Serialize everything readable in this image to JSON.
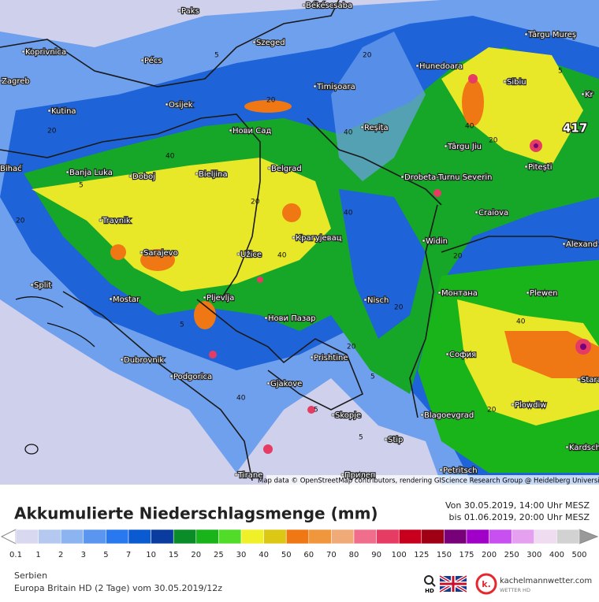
{
  "map": {
    "cities": [
      "Paks",
      "Békéscsaba",
      "Koprivnica",
      "Pécs",
      "Szeged",
      "Zagreb",
      "Kutina",
      "Osijek",
      "Timișoara",
      "Hunedoara",
      "Sibiu",
      "Târgu Mureș",
      "Нови Сад",
      "Reșița",
      "Târgu Jiu",
      "Pitești",
      "Banja Luka",
      "Doboj",
      "Bieljina",
      "Belgrad",
      "Drobeta-Turnu Severin",
      "Craiova",
      "Travnik",
      "Sarajevo",
      "Užice",
      "Крагујевац",
      "Widin",
      "Alexand",
      "Split",
      "Mostar",
      "Pljevlja",
      "Монтана",
      "Plewen",
      "Nisch",
      "Нови Пазар",
      "Dubrovnik",
      "Prishtine",
      "София",
      "Podgorica",
      "Gjakove",
      "Blagoevgrad",
      "Plowdiw",
      "Skopje",
      "Stip",
      "Tirane",
      "Прилеп",
      "Petritsch",
      "Kardsch",
      "Stara",
      "Kr",
      "Bihać"
    ],
    "max_label": "417",
    "contour_labels": [
      5,
      20,
      40,
      20,
      40,
      5,
      20,
      40,
      20,
      5,
      20,
      40,
      20,
      5,
      40,
      20,
      5,
      40,
      20,
      5,
      20,
      40,
      5,
      20
    ],
    "attribution": "Map data © OpenStreetMap contributors, rendering GIScience Research Group @ Heidelberg University"
  },
  "legend": {
    "title": "Akkumulierte Niederschlagsmenge (mm)",
    "from": "Von 30.05.2019, 14:00 Uhr MESZ",
    "to": "bis 01.06.2019, 20:00 Uhr MESZ",
    "values": [
      0.1,
      1,
      2,
      3,
      5,
      7,
      10,
      15,
      20,
      25,
      30,
      40,
      50,
      60,
      70,
      80,
      90,
      100,
      125,
      150,
      175,
      200,
      250,
      300,
      400,
      500
    ],
    "colors": [
      "#d8d8f0",
      "#b4c8f0",
      "#8cb4f0",
      "#5a96f0",
      "#2878f0",
      "#0a5ad2",
      "#0a3ca0",
      "#0a8c28",
      "#19b419",
      "#50dc28",
      "#f0f028",
      "#dcc814",
      "#f07814",
      "#f0963c",
      "#f0aa78",
      "#f06e8c",
      "#e63c64",
      "#c8001e",
      "#a00014",
      "#780078",
      "#a000c8",
      "#c850f0",
      "#e6a0f0",
      "#f0dcf0",
      "#d2d2d2"
    ],
    "under_color": "#ffffff",
    "over_color": "#999999"
  },
  "footer": {
    "region": "Serbien",
    "model": "Europa Britain HD (2 Tage) vom 30.05.2019/12z",
    "zoom": "HD",
    "brand": "kachelmannwetter.com",
    "brand_sub": "WETTER HD",
    "logo": "k."
  }
}
